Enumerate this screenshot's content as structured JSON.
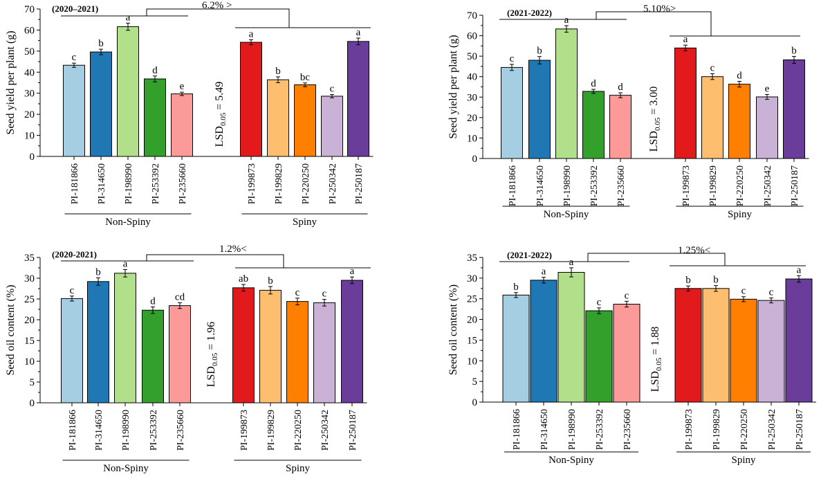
{
  "chart_data": [
    {
      "type": "bar",
      "period": "(2020–2021)",
      "ylabel": "Seed yield per plant (g)",
      "ylim": [
        0,
        70
      ],
      "yticks": [
        0,
        10,
        20,
        30,
        40,
        50,
        60,
        70
      ],
      "lsd_label": "LSD",
      "lsd_sub": "0.05",
      "lsd_value": "= 5.49",
      "comparison_label": "6.2% >",
      "groups": [
        {
          "name": "Non-Spiny",
          "categories": [
            "PI-181866",
            "PI-314650",
            "PI-198990",
            "PI-253392",
            "PI-235660"
          ],
          "values": [
            43.3,
            49.6,
            61.6,
            36.8,
            29.7
          ],
          "errors": [
            1.0,
            1.3,
            1.7,
            1.4,
            0.8
          ],
          "letters": [
            "c",
            "b",
            "a",
            "d",
            "e"
          ],
          "colors": [
            "#a6cee3",
            "#1f78b4",
            "#b2df8a",
            "#33a02c",
            "#fb9a99"
          ]
        },
        {
          "name": "Spiny",
          "categories": [
            "PI-199873",
            "PI-199829",
            "PI-220250",
            "PI-250342",
            "PI-250187"
          ],
          "values": [
            54.2,
            36.4,
            34.0,
            28.6,
            54.6
          ],
          "errors": [
            1.2,
            1.4,
            0.9,
            0.8,
            1.6
          ],
          "letters": [
            "a",
            "b",
            "bc",
            "c",
            "a"
          ],
          "colors": [
            "#e31a1c",
            "#fdbf6f",
            "#ff7f00",
            "#cab2d6",
            "#6a3d9a"
          ]
        }
      ]
    },
    {
      "type": "bar",
      "period": "(2021-2022)",
      "ylabel": "Seed yield per plant (g)",
      "ylim": [
        0,
        70
      ],
      "yticks": [
        0,
        10,
        20,
        30,
        40,
        50,
        60,
        70
      ],
      "lsd_label": "LSD",
      "lsd_sub": "0.05",
      "lsd_value": "= 3.00",
      "comparison_label": "5.10%>",
      "groups": [
        {
          "name": "Non-Spiny",
          "categories": [
            "PI-181866",
            "PI-314650",
            "PI-198990",
            "PI-253392",
            "PI-235660"
          ],
          "values": [
            44.5,
            48.0,
            63.3,
            32.8,
            30.9
          ],
          "errors": [
            1.5,
            1.8,
            1.6,
            1.0,
            1.2
          ],
          "letters": [
            "c",
            "b",
            "a",
            "d",
            "d"
          ],
          "colors": [
            "#a6cee3",
            "#1f78b4",
            "#b2df8a",
            "#33a02c",
            "#fb9a99"
          ]
        },
        {
          "name": "Spiny",
          "categories": [
            "PI-199873",
            "PI-199829",
            "PI-220250",
            "PI-250342",
            "PI-250187"
          ],
          "values": [
            54.0,
            40.0,
            36.3,
            30.1,
            48.2
          ],
          "errors": [
            1.4,
            1.4,
            1.4,
            1.2,
            1.7
          ],
          "letters": [
            "a",
            "c",
            "d",
            "e",
            "b"
          ],
          "colors": [
            "#e31a1c",
            "#fdbf6f",
            "#ff7f00",
            "#cab2d6",
            "#6a3d9a"
          ]
        }
      ]
    },
    {
      "type": "bar",
      "period": "(2020-2021)",
      "ylabel": "Seed oil content (%)",
      "ylim": [
        0,
        35
      ],
      "yticks": [
        0,
        5,
        10,
        15,
        20,
        25,
        30,
        35
      ],
      "lsd_label": "LSD",
      "lsd_sub": "0.05",
      "lsd_value": "= 1.96",
      "comparison_label": "1.2%<",
      "groups": [
        {
          "name": "Non-Spiny",
          "categories": [
            "PI-181866",
            "PI-314650",
            "PI-198990",
            "PI-253392",
            "PI-235660"
          ],
          "values": [
            25.1,
            29.2,
            31.2,
            22.3,
            23.4
          ],
          "errors": [
            0.6,
            0.9,
            0.9,
            0.8,
            0.7
          ],
          "letters": [
            "c",
            "b",
            "a",
            "d",
            "cd"
          ],
          "colors": [
            "#a6cee3",
            "#1f78b4",
            "#b2df8a",
            "#33a02c",
            "#fb9a99"
          ]
        },
        {
          "name": "Spiny",
          "categories": [
            "PI-199873",
            "PI-199829",
            "PI-220250",
            "PI-250342",
            "PI-250187"
          ],
          "values": [
            27.7,
            27.1,
            24.4,
            24.1,
            29.5
          ],
          "errors": [
            0.8,
            0.9,
            0.8,
            0.8,
            0.8
          ],
          "letters": [
            "ab",
            "b",
            "c",
            "c",
            "a"
          ],
          "colors": [
            "#e31a1c",
            "#fdbf6f",
            "#ff7f00",
            "#cab2d6",
            "#6a3d9a"
          ]
        }
      ]
    },
    {
      "type": "bar",
      "period": "(2021-2022)",
      "ylabel": "Seed oil content (%)",
      "ylim": [
        0,
        35
      ],
      "yticks": [
        0,
        5,
        10,
        15,
        20,
        25,
        30,
        35
      ],
      "lsd_label": "LSD",
      "lsd_sub": "0.05",
      "lsd_value": "= 1.88",
      "comparison_label": "1.25%<",
      "groups": [
        {
          "name": "Non-Spiny",
          "categories": [
            "PI-181866",
            "PI-314650",
            "PI-198990",
            "PI-253392",
            "PI-235660"
          ],
          "values": [
            25.9,
            29.5,
            31.4,
            22.1,
            23.7
          ],
          "errors": [
            0.6,
            0.7,
            1.1,
            0.7,
            0.7
          ],
          "letters": [
            "b",
            "a",
            "a",
            "c",
            "c"
          ],
          "colors": [
            "#a6cee3",
            "#1f78b4",
            "#b2df8a",
            "#33a02c",
            "#fb9a99"
          ]
        },
        {
          "name": "Spiny",
          "categories": [
            "PI-199873",
            "PI-199829",
            "PI-220250",
            "PI-250342",
            "PI-250187"
          ],
          "values": [
            27.5,
            27.5,
            24.9,
            24.6,
            29.8
          ],
          "errors": [
            0.6,
            0.7,
            0.6,
            0.6,
            0.8
          ],
          "letters": [
            "b",
            "b",
            "c",
            "c",
            "a"
          ],
          "colors": [
            "#e31a1c",
            "#fdbf6f",
            "#ff7f00",
            "#cab2d6",
            "#6a3d9a"
          ]
        }
      ]
    }
  ]
}
